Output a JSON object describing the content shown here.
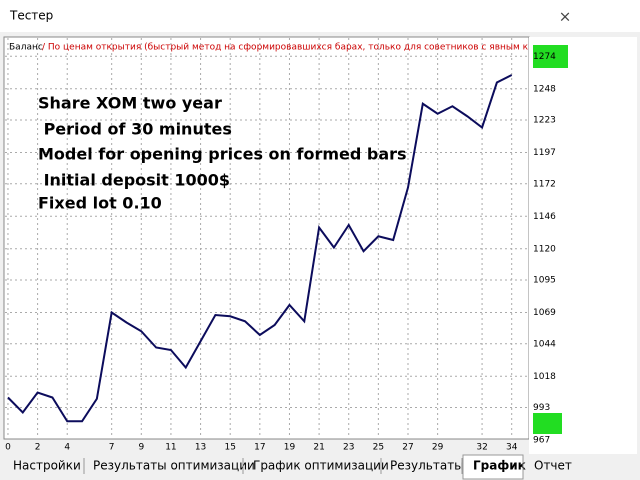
{
  "window_title": "Тестер",
  "close_label": "×",
  "chart_data": {
    "type": "line",
    "legend_label": "Баланс",
    "subtitle": "/ По ценам открытия (быстрый метод на сформировавшихся барах, только для советников с явным контролем",
    "annotations": [
      "Share XOM two year",
      " Period of 30 minutes",
      "Model for opening prices on formed bars",
      " Initial deposit 1000$",
      "Fixed lot 0.10"
    ],
    "x": [
      0,
      1,
      2,
      3,
      4,
      5,
      6,
      7,
      8,
      9,
      10,
      11,
      12,
      13,
      14,
      15,
      16,
      17,
      18,
      19,
      20,
      21,
      22,
      23,
      24,
      25,
      26,
      27,
      28,
      29,
      30,
      31,
      32,
      33,
      34
    ],
    "series": [
      {
        "name": "Баланс",
        "color": "#0c0c5c",
        "values": [
          1001,
          989,
          1005,
          1001,
          982,
          982,
          1000,
          1069,
          1061,
          1054,
          1041,
          1039,
          1025,
          1046,
          1067,
          1066,
          1062,
          1051,
          1059,
          1075,
          1062,
          1137,
          1121,
          1139,
          1118,
          1130,
          1127,
          1169,
          1236,
          1228,
          1234,
          1226,
          1217,
          1253,
          1259
        ]
      }
    ],
    "xlim": [
      -0.2,
      35.1
    ],
    "xticks": [
      0,
      2,
      4,
      7,
      9,
      11,
      13,
      15,
      17,
      19,
      21,
      23,
      25,
      27,
      29,
      32,
      34
    ],
    "ylim": [
      967,
      1287
    ],
    "yticks": [
      967,
      993,
      1018,
      1044,
      1069,
      1095,
      1120,
      1146,
      1172,
      1197,
      1223,
      1248,
      1274
    ],
    "grid": true
  },
  "tabs": [
    {
      "label": "Настройки"
    },
    {
      "label": "Результаты оптимизации"
    },
    {
      "label": "График оптимизации"
    },
    {
      "label": "Результаты"
    },
    {
      "label": "График",
      "active": true
    },
    {
      "label": "Отчет"
    }
  ]
}
